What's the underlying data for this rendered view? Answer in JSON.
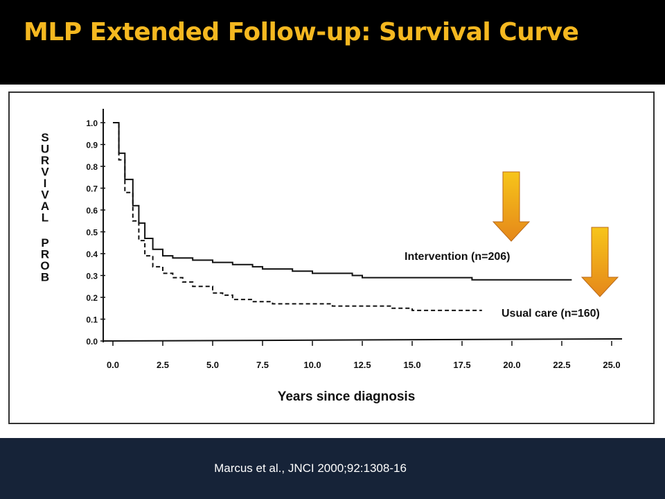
{
  "slide": {
    "title": "MLP Extended Follow-up: Survival Curve",
    "citation": "Marcus et al., JNCI 2000;92:1308-16"
  },
  "colors": {
    "title": "#f5b820",
    "background": "#000000",
    "footer": "#162338",
    "arrow_top": "#f7c51a",
    "arrow_bottom": "#e5871a"
  },
  "annotations": [
    {
      "name": "arrow-down-icon",
      "points_to": "Intervention (n=206)"
    },
    {
      "name": "arrow-down-icon",
      "points_to": "Usual care (n=160)"
    }
  ],
  "chart_data": {
    "type": "line",
    "title": "",
    "xlabel": "Years since diagnosis",
    "ylabel": "SURVIVAL PROB",
    "xlim": [
      0,
      25
    ],
    "ylim": [
      0,
      1
    ],
    "xticks": [
      "0.0",
      "2.5",
      "5.0",
      "7.5",
      "10.0",
      "12.5",
      "15.0",
      "17.5",
      "20.0",
      "22.5",
      "25.0"
    ],
    "yticks": [
      "0.0",
      "0.1",
      "0.2",
      "0.3",
      "0.4",
      "0.5",
      "0.6",
      "0.7",
      "0.8",
      "0.9",
      "1.0"
    ],
    "grid": false,
    "series": [
      {
        "name": "Intervention (n=206)",
        "line_style": "solid",
        "x": [
          0,
          0.3,
          0.6,
          1.0,
          1.3,
          1.6,
          2.0,
          2.5,
          3.0,
          4.0,
          5.0,
          5.5,
          6.0,
          7.0,
          7.5,
          8.0,
          9.0,
          10.0,
          11.0,
          12.0,
          12.5,
          13.0,
          15.0,
          17.5,
          18.0,
          20.0,
          22.5,
          23.0
        ],
        "y": [
          1.0,
          0.86,
          0.74,
          0.62,
          0.54,
          0.47,
          0.42,
          0.39,
          0.38,
          0.37,
          0.36,
          0.36,
          0.35,
          0.34,
          0.33,
          0.33,
          0.32,
          0.31,
          0.31,
          0.3,
          0.29,
          0.29,
          0.29,
          0.29,
          0.28,
          0.28,
          0.28,
          0.28
        ]
      },
      {
        "name": "Usual care (n=160)",
        "line_style": "dashed",
        "x": [
          0,
          0.3,
          0.6,
          1.0,
          1.3,
          1.6,
          2.0,
          2.5,
          3.0,
          3.5,
          4.0,
          5.0,
          5.5,
          6.0,
          7.0,
          8.0,
          10.0,
          11.0,
          12.0,
          14.0,
          15.0,
          17.5,
          18.5
        ],
        "y": [
          1.0,
          0.83,
          0.68,
          0.55,
          0.46,
          0.39,
          0.34,
          0.31,
          0.29,
          0.27,
          0.25,
          0.22,
          0.21,
          0.19,
          0.18,
          0.17,
          0.17,
          0.16,
          0.16,
          0.15,
          0.14,
          0.14,
          0.14
        ]
      }
    ]
  }
}
